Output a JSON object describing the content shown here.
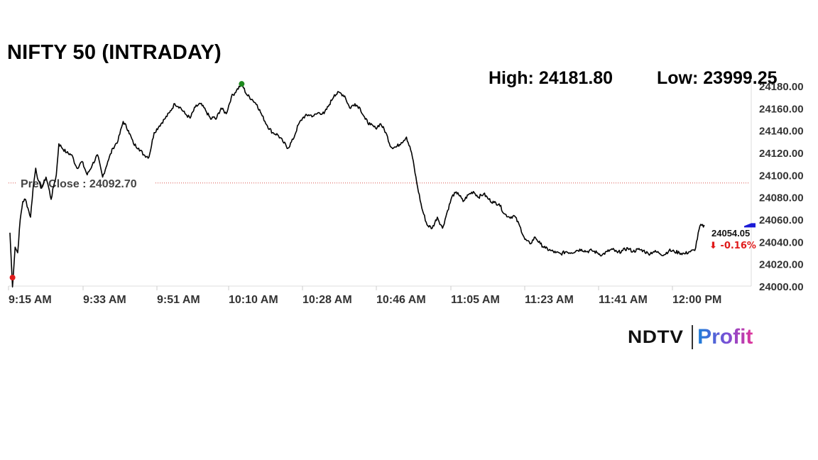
{
  "header": {
    "title": "NIFTY 50 (INTRADAY)",
    "high_text": "High: 24181.80",
    "low_text": "Low: 23999.25"
  },
  "logo": {
    "left": "NDTV",
    "right": "Profit"
  },
  "colors": {
    "line": "#000000",
    "prev_close": "#d9534f",
    "high_marker": "#1e8a1e",
    "low_marker": "#e01b1b",
    "change_negative": "#e01b1b",
    "arrow_marker": "#1a1ad6"
  },
  "chart_data": {
    "type": "line",
    "title": "NIFTY 50 (INTRADAY)",
    "x_tick_labels": [
      "9:15 AM",
      "9:33 AM",
      "9:51 AM",
      "10:10 AM",
      "10:28 AM",
      "10:46 AM",
      "11:05 AM",
      "11:23 AM",
      "11:41 AM",
      "12:00 PM"
    ],
    "y_tick_labels": [
      "24180.00",
      "24160.00",
      "24140.00",
      "24120.00",
      "24100.00",
      "24080.00",
      "24060.00",
      "24040.00",
      "24020.00",
      "24000.00"
    ],
    "ylim": [
      24000,
      24180
    ],
    "prev_close": {
      "label": "Prev Close : 24092.70",
      "value": 24092.7
    },
    "high": 24181.8,
    "low": 23999.25,
    "last": {
      "value_label": "24054.05",
      "change_label": "⬇ -0.16%",
      "value": 24054.05
    },
    "series": [
      {
        "x": [
          0,
          1,
          2,
          3,
          4,
          5,
          6,
          7,
          8,
          9,
          10,
          11,
          12,
          13,
          14,
          15,
          16,
          17,
          18,
          19,
          20,
          22,
          24,
          26,
          28,
          30,
          32,
          34,
          36,
          38,
          40,
          42,
          44,
          46,
          48,
          50,
          52,
          54,
          56,
          58,
          60,
          62,
          64,
          66,
          68,
          70,
          72,
          74,
          76,
          78,
          79,
          80,
          82,
          84,
          86,
          88,
          90,
          92,
          94,
          96,
          98,
          100,
          102,
          104,
          106,
          108,
          110,
          112,
          114,
          116,
          118,
          120,
          122,
          124,
          126,
          128,
          130,
          132,
          134,
          136,
          138,
          140,
          142,
          144,
          146,
          148,
          150,
          152,
          154,
          156,
          158,
          160,
          162,
          164,
          166,
          168,
          170,
          172,
          174,
          176,
          178,
          180,
          182,
          184,
          186,
          188,
          190,
          192,
          194,
          196,
          198,
          200,
          202,
          204,
          206,
          208,
          210,
          212,
          214,
          216,
          218,
          220,
          222,
          224,
          226,
          228,
          230,
          232,
          234,
          236,
          238,
          240,
          242,
          244,
          246,
          248,
          250,
          252,
          254,
          256,
          258,
          260,
          262,
          264,
          266,
          268,
          270
        ],
        "y": [
          24048,
          23999.25,
          24035,
          24030,
          24060,
          24076,
          24078,
          24070,
          24062,
          24088,
          24106,
          24095,
          24088,
          24092,
          24098,
          24089,
          24078,
          24090,
          24100,
          24128,
          24125,
          24120,
          24118,
          24106,
          24112,
          24100,
          24109,
          24118,
          24098,
          24112,
          24124,
          24131,
          24148,
          24140,
          24128,
          24124,
          24118,
          24116,
          24138,
          24144,
          24150,
          24156,
          24164,
          24161,
          24155,
          24151,
          24161,
          24164,
          24158,
          24150,
          24152,
          24150,
          24160,
          24155,
          24170,
          24176,
          24181.8,
          24172,
          24168,
          24163,
          24153,
          24144,
          24138,
          24136,
          24130,
          24124,
          24132,
          24145,
          24152,
          24154,
          24153,
          24156,
          24155,
          24163,
          24172,
          24174,
          24171,
          24160,
          24164,
          24160,
          24150,
          24145,
          24142,
          24146,
          24138,
          24125,
          24125,
          24129,
          24134,
          24120,
          24093,
          24070,
          24055,
          24052,
          24062,
          24052,
          24068,
          24082,
          24084,
          24076,
          24082,
          24085,
          24080,
          24083,
          24078,
          24075,
          24074,
          24065,
          24062,
          24063,
          24054,
          24042,
          24038,
          24044,
          24038,
          24034,
          24032,
          24030,
          24029,
          24031,
          24030,
          24032,
          24033,
          24031,
          24032,
          24030,
          24028,
          24031,
          24033,
          24030,
          24032,
          24034,
          24031,
          24033,
          24032,
          24029,
          24031,
          24030,
          24028,
          24032,
          24031,
          24030,
          24029,
          24031,
          24032,
          24054.05,
          24054.05
        ]
      }
    ]
  }
}
